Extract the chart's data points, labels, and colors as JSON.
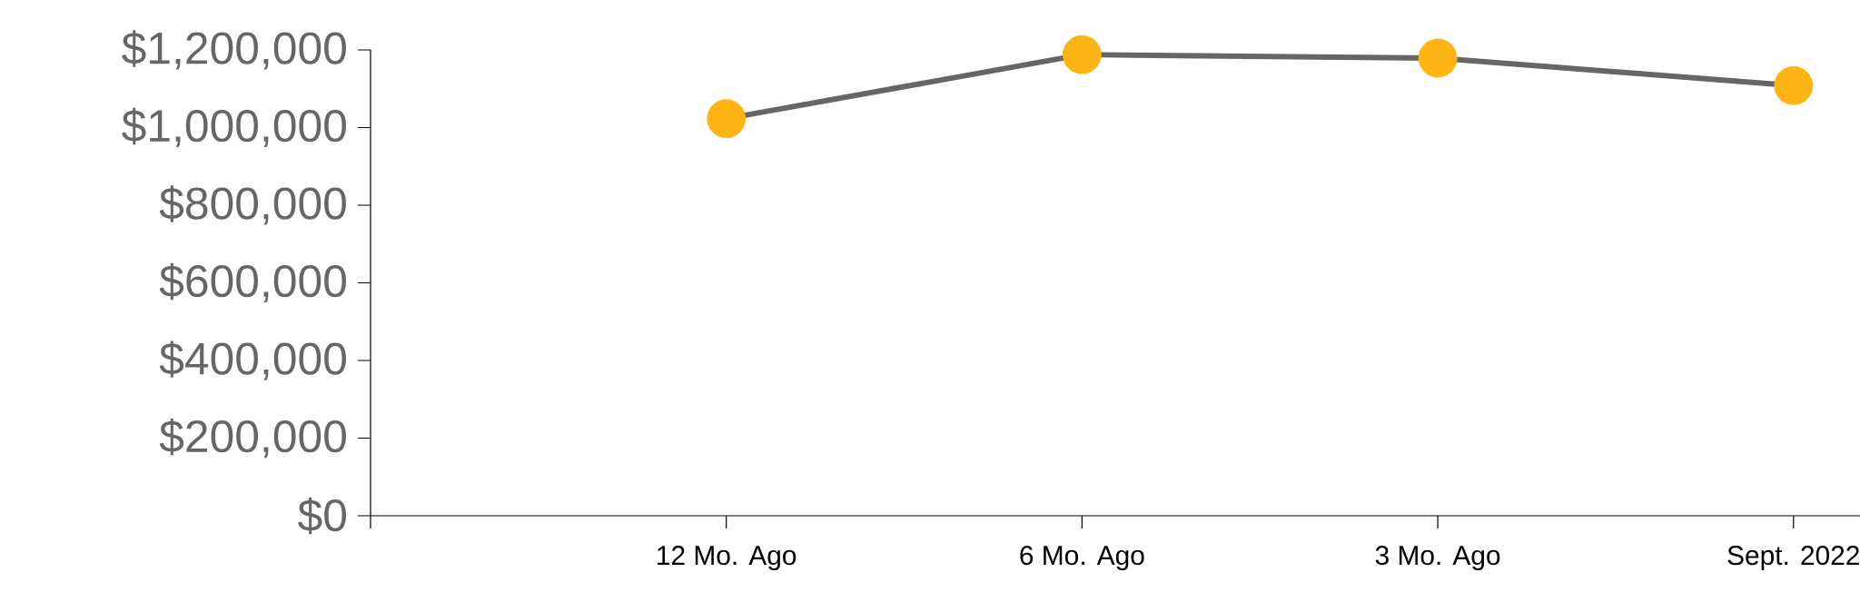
{
  "chart_data": {
    "type": "line",
    "categories": [
      null,
      "12 Mo. Ago",
      "6 Mo. Ago",
      "3 Mo. Ago",
      "Sept. 2022"
    ],
    "series": [
      {
        "color": "#666666",
        "colors": [
          null,
          "#fdb515",
          "#fdb515",
          "#fdb515",
          "#fdb515"
        ],
        "values": [
          null,
          1023000,
          1188000,
          1179000,
          1108000
        ]
      }
    ],
    "ylim": [
      0,
      1200000
    ],
    "yticks": [
      {
        "value": 0,
        "label": "$0"
      },
      {
        "value": 200000,
        "label": "$200,000"
      },
      {
        "value": 400000,
        "label": "$400,000"
      },
      {
        "value": 600000,
        "label": "$600,000"
      },
      {
        "value": 800000,
        "label": "$800,000"
      },
      {
        "value": 1000000,
        "label": "$1,000,000"
      },
      {
        "value": 1200000,
        "label": "$1,200,000"
      }
    ],
    "grid": false,
    "marker": "circle",
    "line_style": "solid"
  }
}
